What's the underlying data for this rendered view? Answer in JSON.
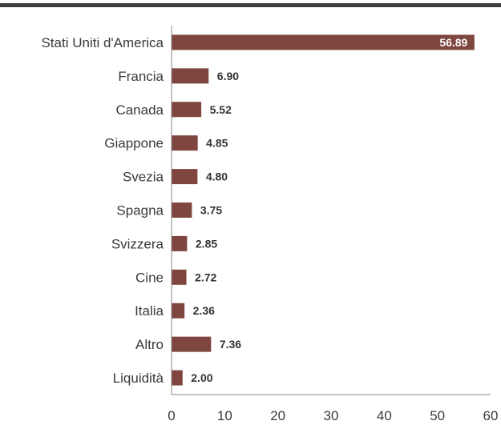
{
  "chart_data": {
    "type": "bar",
    "orientation": "horizontal",
    "categories": [
      "Stati Uniti d'America",
      "Francia",
      "Canada",
      "Giappone",
      "Svezia",
      "Spagna",
      "Svizzera",
      "Cine",
      "Italia",
      "Altro",
      "Liquidità"
    ],
    "values": [
      56.89,
      6.9,
      5.52,
      4.85,
      4.8,
      3.75,
      2.85,
      2.72,
      2.36,
      7.36,
      2.0
    ],
    "value_labels": [
      "56.89",
      "6.90",
      "5.52",
      "4.85",
      "4.80",
      "3.75",
      "2.85",
      "2.72",
      "2.36",
      "7.36",
      "2.00"
    ],
    "xlim": [
      0,
      60
    ],
    "xticks": [
      0,
      10,
      20,
      30,
      40,
      50,
      60
    ],
    "grid": false,
    "bar_color": "#7e463e",
    "top_rule_color": "#3d3d3d"
  }
}
